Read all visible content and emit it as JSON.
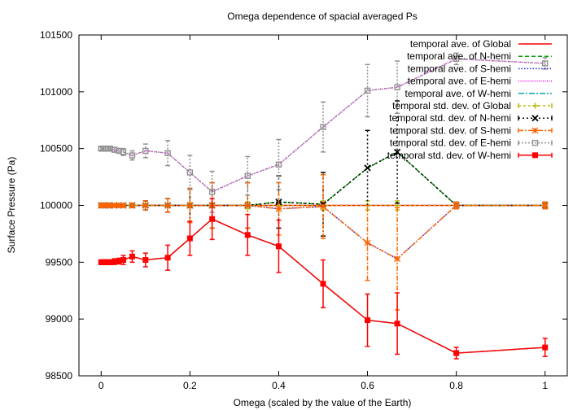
{
  "chart_data": {
    "type": "line",
    "title": "Omega dependence of spacial averaged Ps",
    "xlabel": "Omega (scaled by the value of the Earth)",
    "ylabel": "Surface Pressure (Pa)",
    "xlim": [
      -0.05,
      1.05
    ],
    "ylim": [
      98500,
      101500
    ],
    "xticks": [
      0,
      0.2,
      0.4,
      0.6,
      0.8,
      1
    ],
    "xtick_labels": [
      "0",
      "0.2",
      "0.4",
      "0.6",
      "0.8",
      "1"
    ],
    "yticks": [
      98500,
      99000,
      99500,
      100000,
      100500,
      101000,
      101500
    ],
    "ytick_labels": [
      "98500",
      "99000",
      "99500",
      "100000",
      "100500",
      "101000",
      "101500"
    ],
    "grid": false,
    "legend_position": "top-right",
    "x": [
      0,
      0.005,
      0.01,
      0.015,
      0.02,
      0.03,
      0.04,
      0.05,
      0.07,
      0.1,
      0.15,
      0.2,
      0.25,
      0.33,
      0.4,
      0.5,
      0.6,
      0.667,
      0.8,
      1.0
    ],
    "series": [
      {
        "name": "temporal ave. of Global",
        "color": "#ff0000",
        "dash": "",
        "marker": "none",
        "values": [
          100000,
          100000,
          100000,
          100000,
          100000,
          100000,
          100000,
          100000,
          100000,
          100000,
          100000,
          100000,
          100000,
          100000,
          100000,
          100000,
          100000,
          100000,
          100000,
          100000
        ]
      },
      {
        "name": "temporal ave. of N-hemi",
        "color": "#00a000",
        "dash": "5,3",
        "marker": "none",
        "values": [
          100000,
          100000,
          100000,
          100000,
          100000,
          100000,
          100000,
          100000,
          100000,
          100000,
          100000,
          100000,
          100000,
          100000,
          100030,
          100010,
          100330,
          100470,
          100000,
          100000
        ]
      },
      {
        "name": "temporal ave. of S-hemi",
        "color": "#2020ff",
        "dash": "1.5,2",
        "marker": "none",
        "values": [
          100000,
          100000,
          100000,
          100000,
          100000,
          100000,
          100000,
          100000,
          100000,
          100000,
          100000,
          100000,
          100000,
          100000,
          99970,
          99990,
          99670,
          99530,
          100000,
          100000
        ]
      },
      {
        "name": "temporal ave. of E-hemi",
        "color": "#ee00ee",
        "dash": "1,1.5",
        "marker": "none",
        "values": [
          100500,
          100500,
          100500,
          100500,
          100500,
          100490,
          100480,
          100470,
          100440,
          100480,
          100460,
          100290,
          100120,
          100260,
          100360,
          100690,
          101010,
          101040,
          101290,
          101250
        ]
      },
      {
        "name": "temporal ave. of W-hemi",
        "color": "#00aaaa",
        "dash": "7,2,2,2",
        "marker": "none",
        "values": [
          99500,
          99500,
          99500,
          99500,
          99500,
          99505,
          99510,
          99520,
          99550,
          99520,
          99540,
          99710,
          99880,
          99740,
          99640,
          99310,
          98990,
          98960,
          98700,
          98750
        ]
      },
      {
        "name": "temporal std. dev. of Global",
        "color": "#b8b800",
        "dash": "3,3",
        "marker": "plus",
        "values": [
          100000,
          100000,
          100000,
          100000,
          100000,
          100000,
          100000,
          100000,
          100000,
          100000,
          100000,
          100000,
          100000,
          100000,
          100000,
          100000,
          100000,
          100000,
          100000,
          100000
        ],
        "errors": [
          5,
          5,
          5,
          5,
          5,
          5,
          5,
          5,
          5,
          10,
          10,
          20,
          20,
          30,
          30,
          40,
          40,
          40,
          30,
          20
        ]
      },
      {
        "name": "temporal std. dev. of N-hemi",
        "color": "#000000",
        "dash": "2,3",
        "marker": "cross",
        "values": [
          100000,
          100000,
          100000,
          100000,
          100000,
          100000,
          100000,
          100000,
          100000,
          100000,
          100000,
          100000,
          100000,
          100000,
          100030,
          100010,
          100330,
          100470,
          100000,
          100000
        ],
        "errors": [
          10,
          10,
          10,
          10,
          10,
          10,
          15,
          15,
          20,
          40,
          60,
          150,
          200,
          200,
          230,
          280,
          330,
          450,
          30,
          30
        ]
      },
      {
        "name": "temporal std. dev. of S-hemi",
        "color": "#ff6600",
        "dash": "6,2,2,2",
        "marker": "star",
        "values": [
          100000,
          100000,
          100000,
          100000,
          100000,
          100000,
          100000,
          100000,
          100000,
          100000,
          100000,
          100000,
          100000,
          100000,
          99970,
          99990,
          99670,
          99530,
          100000,
          100000
        ],
        "errors": [
          10,
          10,
          10,
          10,
          10,
          10,
          15,
          15,
          20,
          40,
          60,
          150,
          200,
          200,
          230,
          280,
          330,
          450,
          30,
          30
        ]
      },
      {
        "name": "temporal std. dev. of E-hemi",
        "color": "#909090",
        "dash": "2,2",
        "marker": "square-open",
        "values": [
          100500,
          100500,
          100500,
          100500,
          100500,
          100490,
          100480,
          100470,
          100440,
          100480,
          100460,
          100290,
          100120,
          100260,
          100360,
          100690,
          101010,
          101040,
          101290,
          101250
        ],
        "errors": [
          15,
          15,
          15,
          15,
          15,
          20,
          20,
          30,
          40,
          60,
          110,
          150,
          180,
          170,
          220,
          220,
          230,
          230,
          50,
          50
        ]
      },
      {
        "name": "temporal std. dev. of W-hemi",
        "color": "#ff0000",
        "dash": "",
        "marker": "square-filled",
        "values": [
          99500,
          99500,
          99500,
          99500,
          99500,
          99505,
          99510,
          99520,
          99550,
          99520,
          99540,
          99710,
          99880,
          99740,
          99640,
          99310,
          98990,
          98960,
          98700,
          98750
        ],
        "errors": [
          20,
          20,
          20,
          20,
          20,
          25,
          25,
          40,
          50,
          60,
          110,
          150,
          180,
          180,
          230,
          210,
          230,
          270,
          50,
          80
        ]
      }
    ]
  }
}
